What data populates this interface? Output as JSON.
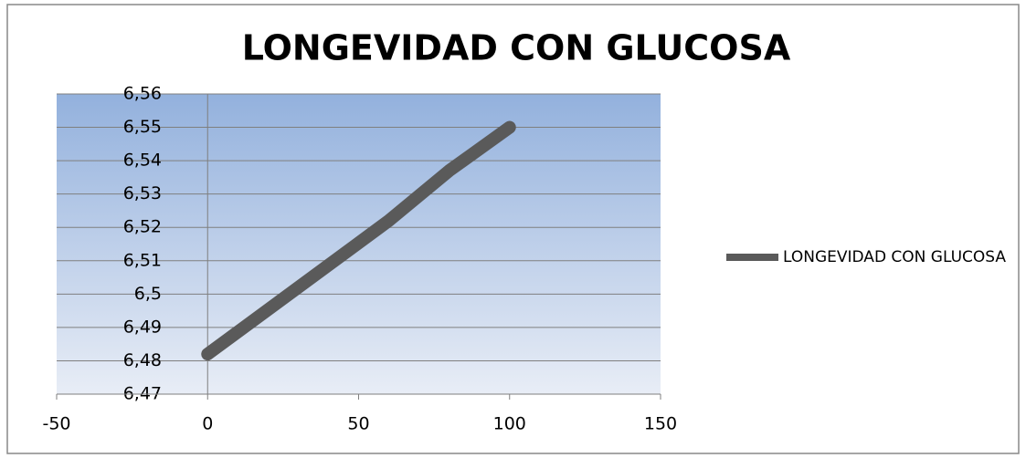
{
  "chart_data": {
    "type": "line",
    "title": "LONGEVIDAD CON GLUCOSA",
    "x": [
      0,
      60,
      80,
      100
    ],
    "series": [
      {
        "name": "LONGEVIDAD CON GLUCOSA",
        "color": "#5a5a5a",
        "values": [
          6.482,
          6.522,
          6.537,
          6.55
        ]
      }
    ],
    "xlim": [
      -50,
      150
    ],
    "xticks": [
      -50,
      0,
      50,
      100,
      150
    ],
    "ylim": [
      6.47,
      6.56
    ],
    "yticks": [
      {
        "value": 6.47,
        "label": "6,47"
      },
      {
        "value": 6.48,
        "label": "6,48"
      },
      {
        "value": 6.49,
        "label": "6,49"
      },
      {
        "value": 6.5,
        "label": "6,5"
      },
      {
        "value": 6.51,
        "label": "6,51"
      },
      {
        "value": 6.52,
        "label": "6,52"
      },
      {
        "value": 6.53,
        "label": "6,53"
      },
      {
        "value": 6.54,
        "label": "6,54"
      },
      {
        "value": 6.55,
        "label": "6,55"
      },
      {
        "value": 6.56,
        "label": "6,56"
      }
    ],
    "grid": true,
    "legend": "right"
  }
}
